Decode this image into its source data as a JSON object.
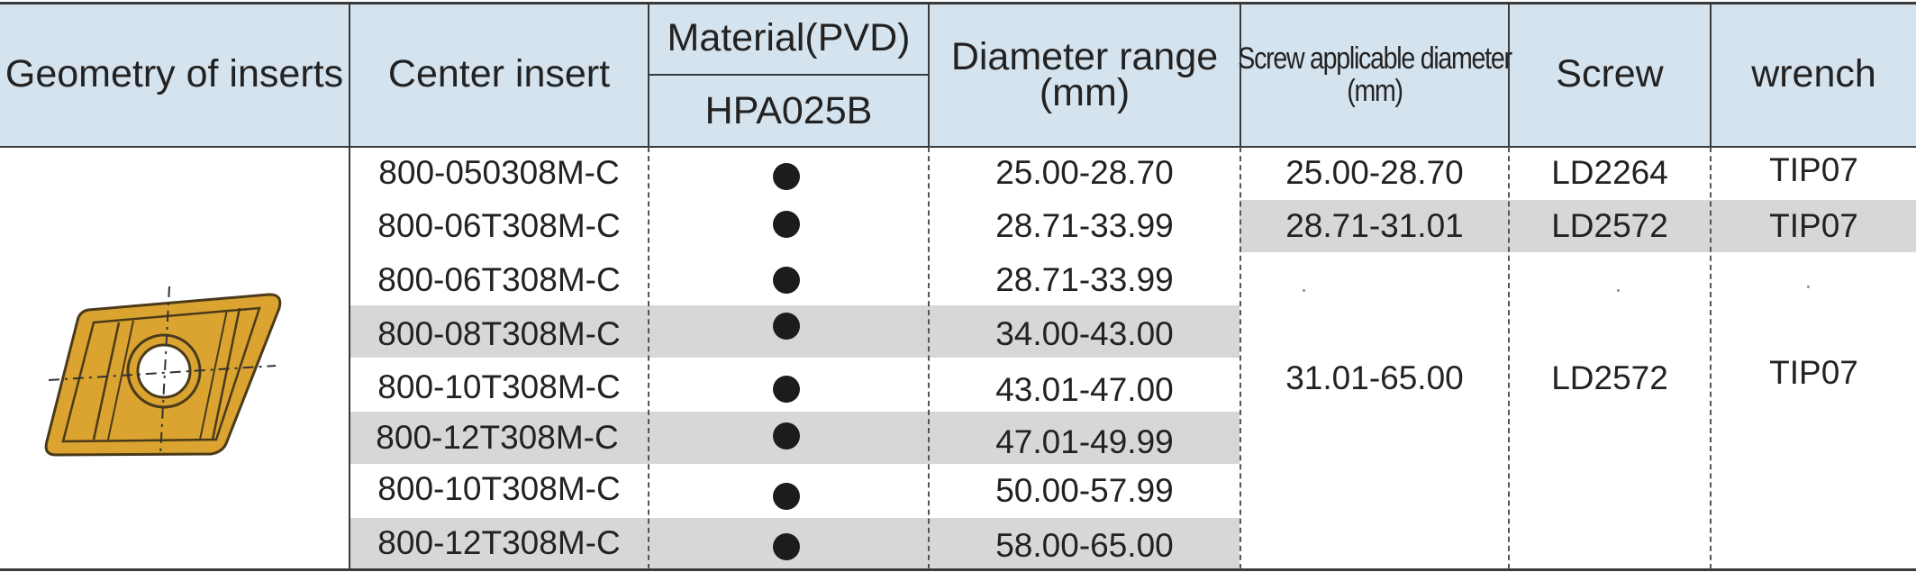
{
  "header": {
    "geometry": "Geometry of inserts",
    "center_insert": "Center insert",
    "material": "Material(PVD)",
    "grade": "HPA025B",
    "diameter_range_line1": "Diameter range",
    "diameter_range_line2": "(mm)",
    "screw_diameter_line1": "Screw applicable diameter",
    "screw_diameter_line2": "(mm)",
    "screw": "Screw",
    "wrench": "wrench"
  },
  "rows": [
    {
      "insert": "800-050308M-C",
      "available": true,
      "diameter": "25.00-28.70"
    },
    {
      "insert": "800-06T308M-C",
      "available": true,
      "diameter": "28.71-33.99"
    },
    {
      "insert": "800-06T308M-C",
      "available": true,
      "diameter": "28.71-33.99"
    },
    {
      "insert": "800-08T308M-C",
      "available": true,
      "diameter": "34.00-43.00"
    },
    {
      "insert": "800-10T308M-C",
      "available": true,
      "diameter": "43.01-47.00"
    },
    {
      "insert": "800-12T308M-C",
      "available": true,
      "diameter": "47.01-49.99"
    },
    {
      "insert": "800-10T308M-C",
      "available": true,
      "diameter": "50.00-57.99"
    },
    {
      "insert": "800-12T308M-C",
      "available": true,
      "diameter": "58.00-65.00"
    }
  ],
  "screw_groups": [
    {
      "screw_diameter": "25.00-28.70",
      "screw": "LD2264",
      "wrench": "TIP07"
    },
    {
      "screw_diameter": "28.71-31.01",
      "screw": "LD2572",
      "wrench": "TIP07"
    },
    {
      "screw_diameter": "31.01-65.00",
      "screw": "LD2572",
      "wrench": "TIP07"
    }
  ],
  "colors": {
    "header_bg": "#d5e3ee",
    "stripe_bg": "#d7d7d9",
    "insert_gold": "#dba431",
    "insert_outline": "#4a3a1a",
    "availability_dot": "#1c1c1c"
  },
  "icons": {
    "insert_image": "rhombic-insert-with-screw-hole"
  }
}
